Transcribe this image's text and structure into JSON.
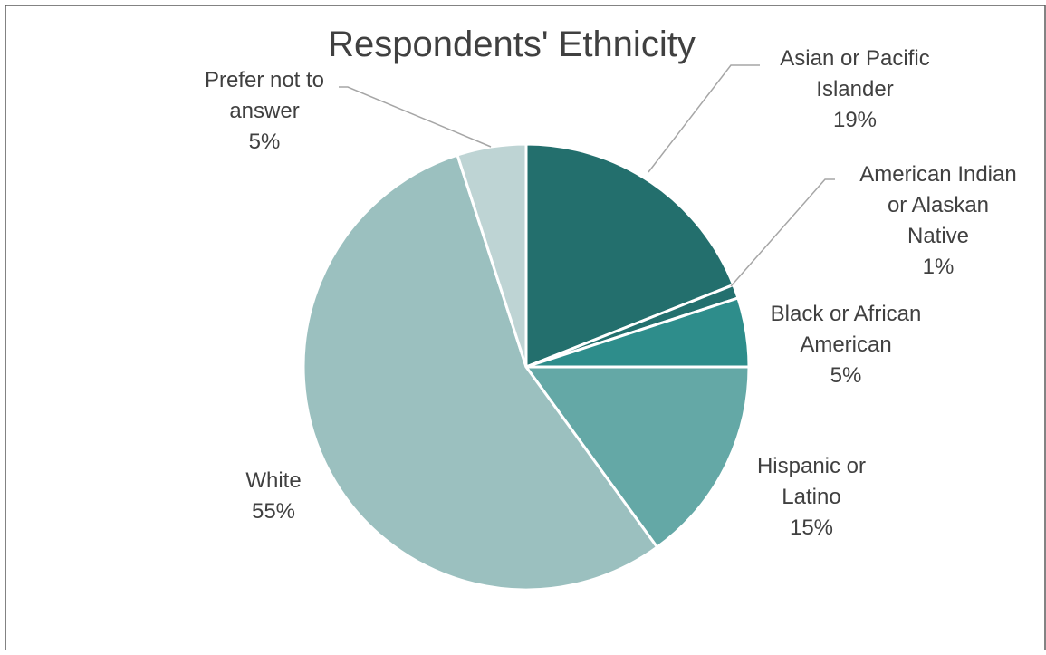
{
  "chart_data": {
    "type": "pie",
    "title": "Respondents' Ethnicity",
    "categories": [
      "Asian or Pacific Islander",
      "American Indian or Alaskan Native",
      "Black or African American",
      "Hispanic or Latino",
      "White",
      "Prefer not to answer"
    ],
    "values": [
      19,
      1,
      5,
      15,
      55,
      5
    ],
    "value_labels": [
      "19%",
      "1%",
      "5%",
      "15%",
      "55%",
      "5%"
    ],
    "label_lines": [
      [
        "Asian or Pacific",
        "Islander",
        "19%"
      ],
      [
        "American Indian",
        "or Alaskan",
        "Native",
        "1%"
      ],
      [
        "Black or African",
        "American",
        "5%"
      ],
      [
        "Hispanic or",
        "Latino",
        "15%"
      ],
      [
        "White",
        "55%"
      ],
      [
        "Prefer not to",
        "answer",
        "5%"
      ]
    ],
    "colors": [
      "#236f6d",
      "#23706e",
      "#2e8d8b",
      "#64a8a6",
      "#9bc0bf",
      "#bed4d4"
    ],
    "legend": "none",
    "data_labels": "outside-with-leader-lines"
  }
}
